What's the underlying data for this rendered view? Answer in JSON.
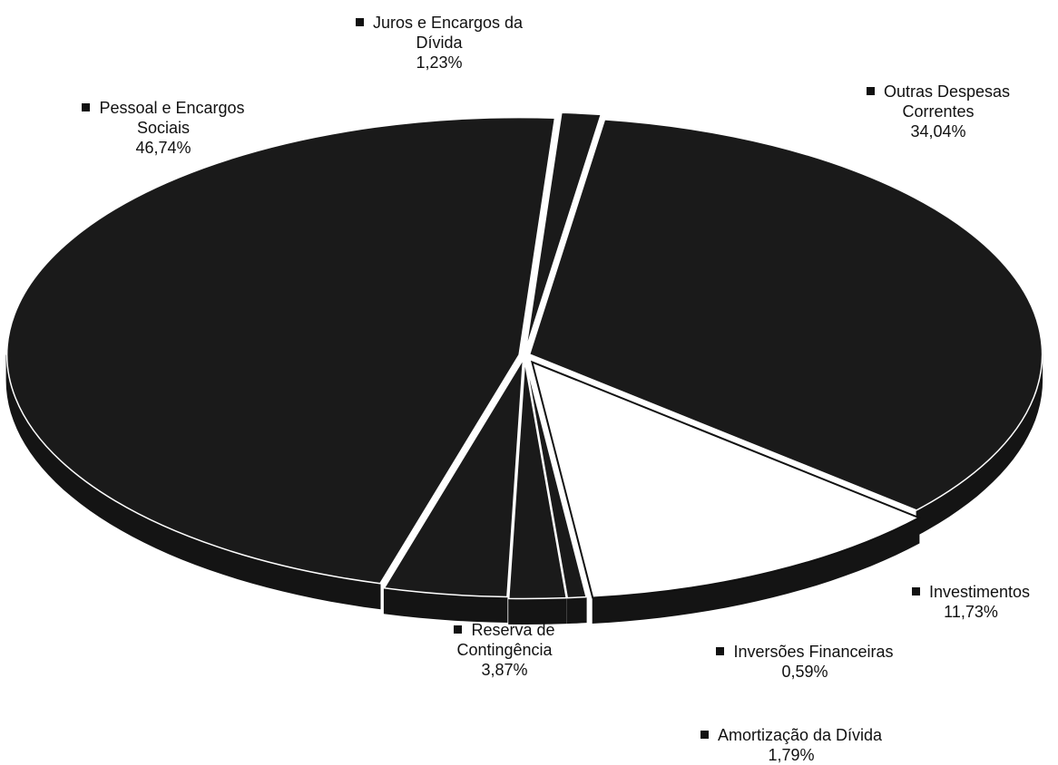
{
  "chart_data": {
    "type": "pie",
    "style": "3d-exploded",
    "slices": [
      {
        "label_lines": [
          "Juros e Encargos da",
          "Dívida"
        ],
        "value": 1.23,
        "value_label": "1,23%",
        "fill": "#1a1a1a"
      },
      {
        "label_lines": [
          "Outras Despesas",
          "Correntes"
        ],
        "value": 34.04,
        "value_label": "34,04%",
        "fill": "#1a1a1a"
      },
      {
        "label_lines": [
          "Investimentos"
        ],
        "value": 11.73,
        "value_label": "11,73%",
        "fill": "#ffffff"
      },
      {
        "label_lines": [
          "Inversões Financeiras"
        ],
        "value": 0.59,
        "value_label": "0,59%",
        "fill": "#1a1a1a"
      },
      {
        "label_lines": [
          "Amortização da Dívida"
        ],
        "value": 1.79,
        "value_label": "1,79%",
        "fill": "#1a1a1a"
      },
      {
        "label_lines": [
          "Reserva de",
          "Contingência"
        ],
        "value": 3.87,
        "value_label": "3,87%",
        "fill": "#1a1a1a"
      },
      {
        "label_lines": [
          "Pessoal e Encargos",
          "Sociais"
        ],
        "value": 46.74,
        "value_label": "46,74%",
        "fill": "#1a1a1a"
      }
    ],
    "legend": "none",
    "labels_placement": "outside"
  }
}
